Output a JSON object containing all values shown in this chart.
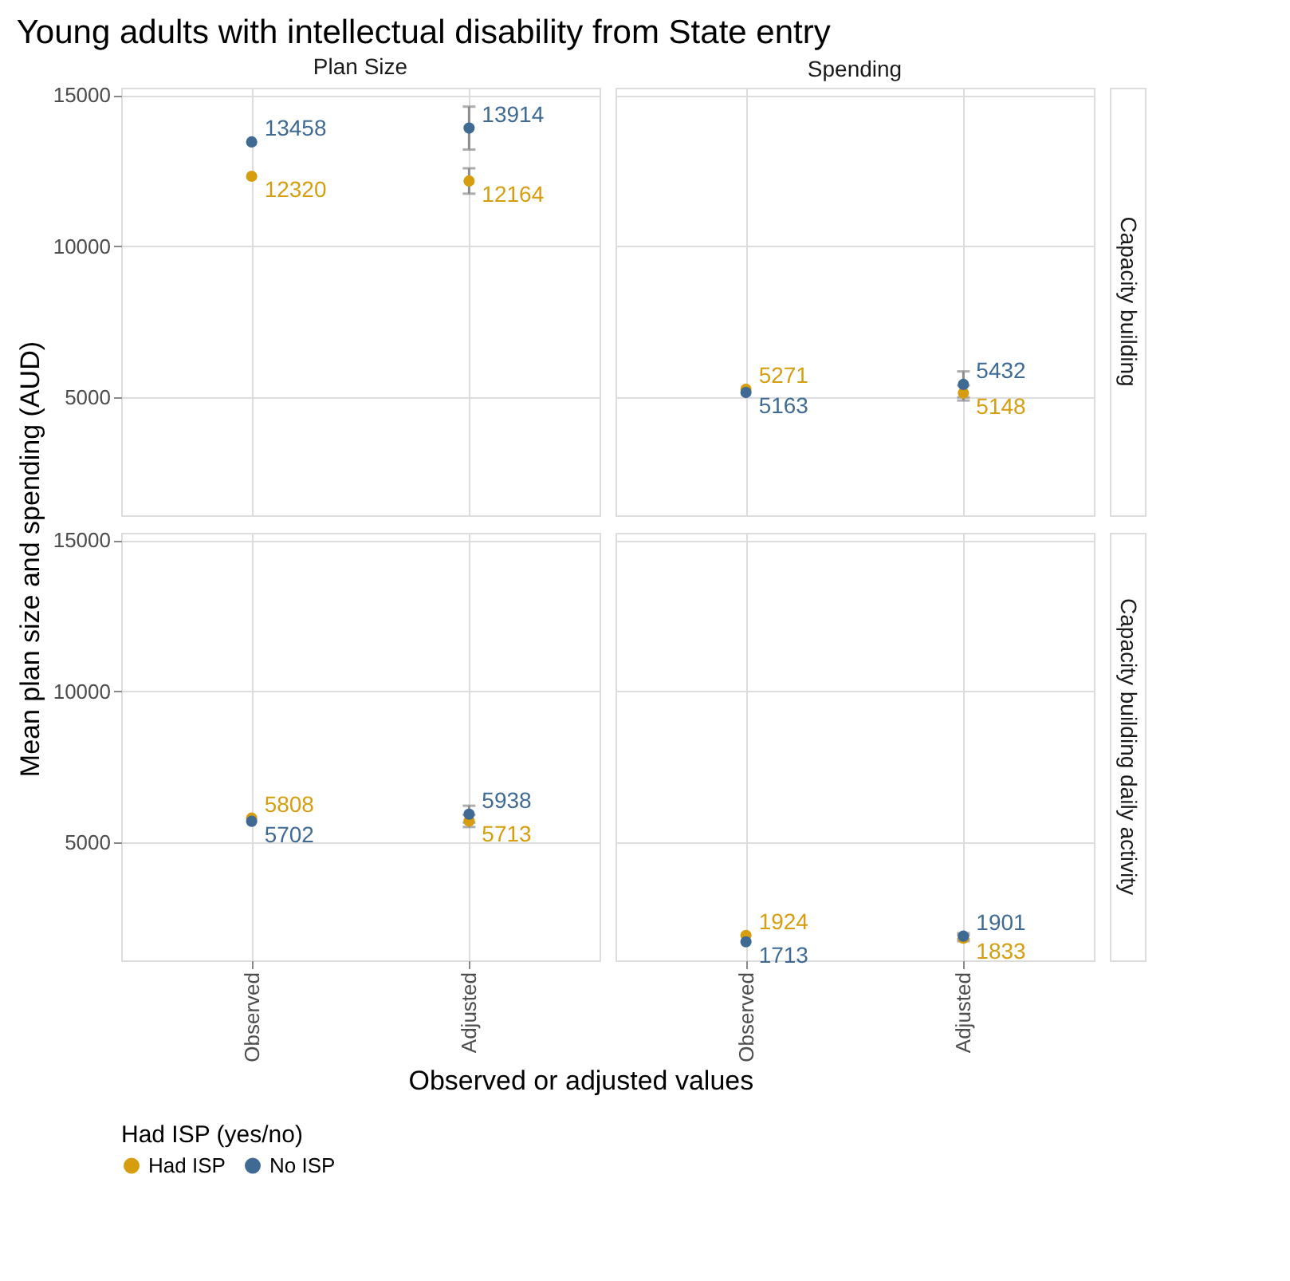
{
  "chart_data": [
    {
      "type": "scatter",
      "title": "Young adults with intellectual disability from State entry",
      "subtitle": "Plan Size",
      "xlabel": "Observed or adjusted values",
      "ylabel": "Mean plan size and spending (AUD)",
      "legend_title": "Had ISP (yes/no)",
      "legend": "bottom",
      "categories": [
        "Observed",
        "Adjusted"
      ],
      "ylim": [
        1100,
        15250
      ],
      "yticks": [
        5000,
        10000,
        15000
      ],
      "grid": true,
      "marker": "circle",
      "data_labels": true,
      "tick_labels": "y",
      "series": [
        {
          "name": "Had ISP",
          "color": "#d69e0f",
          "values": [
            12320,
            12164
          ],
          "errors": [
            null,
            420
          ]
        },
        {
          "name": "No ISP",
          "color": "#3e6a94",
          "values": [
            13458,
            13914
          ],
          "errors": [
            null,
            710
          ]
        }
      ]
    },
    {
      "type": "scatter",
      "subtitle": "Spending",
      "y2label": "Capacity building",
      "categories": [
        "Observed",
        "Adjusted"
      ],
      "ylim": [
        1100,
        15250
      ],
      "yticks": [
        5000,
        10000,
        15000
      ],
      "grid": true,
      "marker": "circle",
      "data_labels": true,
      "tick_labels": false,
      "series": [
        {
          "name": "Had ISP",
          "color": "#d69e0f",
          "values": [
            5271,
            5148
          ],
          "errors": [
            null,
            250
          ]
        },
        {
          "name": "No ISP",
          "color": "#3e6a94",
          "values": [
            5163,
            5432
          ],
          "errors": [
            null,
            430
          ]
        }
      ]
    },
    {
      "type": "scatter",
      "categories": [
        "Observed",
        "Adjusted"
      ],
      "ylim": [
        1100,
        15250
      ],
      "yticks": [
        5000,
        10000,
        15000
      ],
      "grid": true,
      "marker": "circle",
      "data_labels": true,
      "series": [
        {
          "name": "Had ISP",
          "color": "#d69e0f",
          "values": [
            5808,
            5713
          ],
          "errors": [
            null,
            200
          ]
        },
        {
          "name": "No ISP",
          "color": "#3e6a94",
          "values": [
            5702,
            5938
          ],
          "errors": [
            null,
            280
          ]
        }
      ]
    },
    {
      "type": "scatter",
      "y2label": "Capacity building daily activity",
      "categories": [
        "Observed",
        "Adjusted"
      ],
      "ylim": [
        1100,
        15250
      ],
      "yticks": [
        5000,
        10000,
        15000
      ],
      "grid": true,
      "marker": "circle",
      "data_labels": true,
      "tick_labels": "x",
      "series": [
        {
          "name": "Had ISP",
          "color": "#d69e0f",
          "values": [
            1924,
            1833
          ],
          "errors": [
            null,
            100
          ]
        },
        {
          "name": "No ISP",
          "color": "#3e6a94",
          "values": [
            1713,
            1901
          ],
          "errors": [
            null,
            100
          ]
        }
      ]
    }
  ]
}
